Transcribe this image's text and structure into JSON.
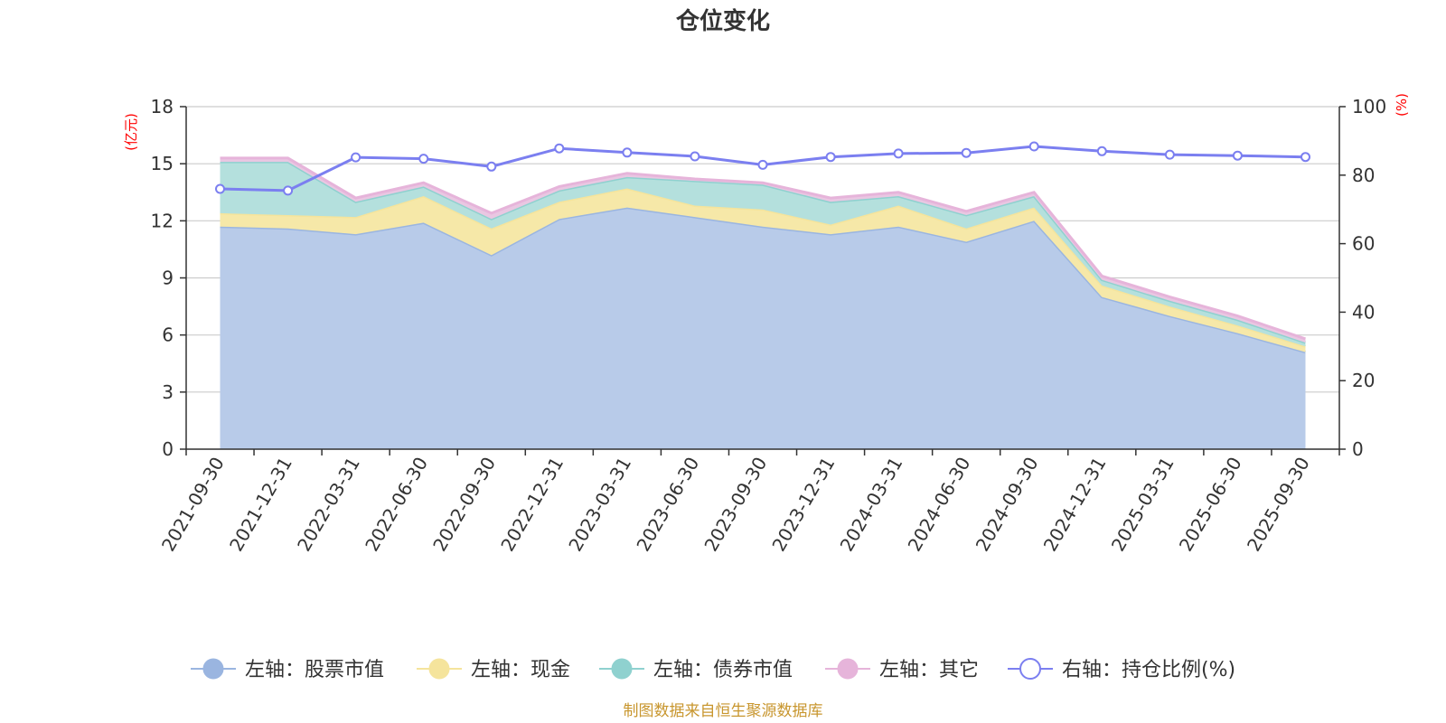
{
  "chart_data": {
    "type": "area",
    "title": "仓位变化",
    "left_axis_unit": "(亿元)",
    "right_axis_unit": "(%)",
    "left_axis": {
      "min": 0,
      "max": 18,
      "ticks": [
        "0",
        "3",
        "6",
        "9",
        "12",
        "15",
        "18"
      ]
    },
    "right_axis": {
      "min": 0,
      "max": 100,
      "ticks": [
        "0",
        "20",
        "40",
        "60",
        "80",
        "100"
      ]
    },
    "grid": true,
    "legend_position": "bottom",
    "categories": [
      "2021-09-30",
      "2021-12-31",
      "2022-03-31",
      "2022-06-30",
      "2022-09-30",
      "2022-12-31",
      "2023-03-31",
      "2023-06-30",
      "2023-09-30",
      "2023-12-31",
      "2024-03-31",
      "2024-06-30",
      "2024-09-30",
      "2024-12-31",
      "2025-03-31",
      "2025-06-30",
      "2025-09-30"
    ],
    "series": [
      {
        "name": "左轴：股票市值",
        "axis": "left",
        "kind": "stacked-area",
        "color": "#9ab5e0",
        "fill": "#b8cbe9",
        "values": [
          11.7,
          11.6,
          11.3,
          11.9,
          10.2,
          12.1,
          12.7,
          12.2,
          11.7,
          11.3,
          11.7,
          10.9,
          12.0,
          8.0,
          7.0,
          6.1,
          5.1
        ]
      },
      {
        "name": "左轴：现金",
        "axis": "left",
        "kind": "stacked-area",
        "color": "#f5e49c",
        "fill": "#f6e8a8",
        "values": [
          0.7,
          0.7,
          0.9,
          1.4,
          1.4,
          0.9,
          1.0,
          0.6,
          0.9,
          0.5,
          1.1,
          0.7,
          0.7,
          0.6,
          0.5,
          0.4,
          0.3
        ]
      },
      {
        "name": "左轴：债券市值",
        "axis": "left",
        "kind": "stacked-area",
        "color": "#8fd1cf",
        "fill": "#b4e0dd",
        "values": [
          2.7,
          2.8,
          0.8,
          0.5,
          0.5,
          0.6,
          0.6,
          1.3,
          1.3,
          1.2,
          0.5,
          0.7,
          0.6,
          0.3,
          0.3,
          0.3,
          0.2
        ]
      },
      {
        "name": "左轴：其它",
        "axis": "left",
        "kind": "stacked-area",
        "color": "#e6b4da",
        "fill": "#e9c7e2",
        "values": [
          0.2,
          0.2,
          0.2,
          0.2,
          0.3,
          0.2,
          0.2,
          0.1,
          0.1,
          0.2,
          0.2,
          0.2,
          0.2,
          0.2,
          0.2,
          0.2,
          0.2
        ]
      },
      {
        "name": "右轴：持仓比例(%)",
        "axis": "right",
        "kind": "line",
        "color": "#7b7ff0",
        "values": [
          76.0,
          75.5,
          85.2,
          84.8,
          82.5,
          87.8,
          86.6,
          85.5,
          83.0,
          85.3,
          86.3,
          86.5,
          88.4,
          87.0,
          86.0,
          85.7,
          85.3
        ]
      }
    ],
    "source_note": "制图数据来自恒生聚源数据库"
  }
}
